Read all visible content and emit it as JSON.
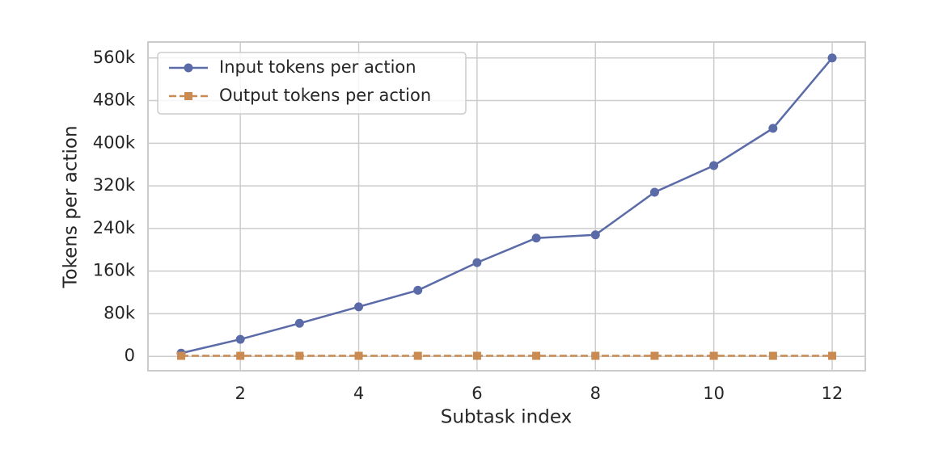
{
  "chart_data": {
    "type": "line",
    "x_label": "Subtask index",
    "y_label": "Tokens per action",
    "x": [
      1,
      2,
      3,
      4,
      5,
      6,
      7,
      8,
      9,
      10,
      11,
      12
    ],
    "series": [
      {
        "name": "Input tokens per action",
        "color": "#5b6ba8",
        "marker": "circle",
        "dash": "solid",
        "values": [
          6000,
          32000,
          62000,
          93000,
          124000,
          176000,
          222000,
          228000,
          308000,
          358000,
          428000,
          560000
        ]
      },
      {
        "name": "Output tokens per action",
        "color": "#c98b52",
        "marker": "square",
        "dash": "dashed",
        "values": [
          1000,
          1000,
          1000,
          1000,
          1000,
          1000,
          1000,
          1000,
          1000,
          1000,
          1000,
          1000
        ]
      }
    ],
    "xlim": [
      0.44,
      12.56
    ],
    "ylim": [
      -27000,
      590000
    ],
    "xticks": [
      2,
      4,
      6,
      8,
      10,
      12
    ],
    "yticks": [
      0,
      {
        "value": 80000,
        "label": "80k"
      },
      {
        "value": 160000,
        "label": "160k"
      },
      {
        "value": 240000,
        "label": "240k"
      },
      {
        "value": 320000,
        "label": "320k"
      },
      {
        "value": 400000,
        "label": "400k"
      },
      {
        "value": 480000,
        "label": "480k"
      },
      {
        "value": 560000,
        "label": "560k"
      }
    ],
    "grid": true,
    "legend": "upper left"
  }
}
